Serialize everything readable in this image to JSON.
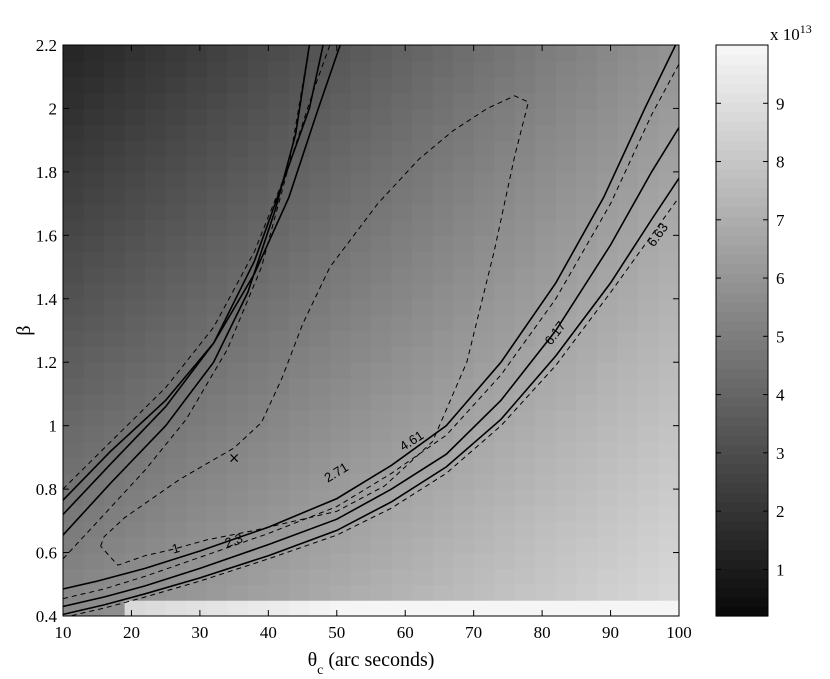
{
  "chart_data": {
    "type": "heatmap",
    "title": "",
    "xlabel": "θ",
    "xlabel_subscript": "c",
    "xlabel_suffix": " (arc seconds)",
    "ylabel": "β",
    "xlim": [
      10,
      100
    ],
    "ylim": [
      0.4,
      2.2
    ],
    "x_ticks": [
      "10",
      "20",
      "30",
      "40",
      "50",
      "60",
      "70",
      "80",
      "90",
      "100"
    ],
    "y_ticks": [
      "0.4",
      "0.6",
      "0.8",
      "1",
      "1.2",
      "1.4",
      "1.6",
      "1.8",
      "2",
      "2.2"
    ],
    "colormap": "gray",
    "colorbar": {
      "min": 0.2,
      "max": 10,
      "ticks": [
        "1",
        "2",
        "3",
        "4",
        "5",
        "6",
        "7",
        "8",
        "9"
      ],
      "multiplier_prefix": "x 10",
      "multiplier_exponent": "13"
    },
    "best_fit_marker": {
      "symbol": "×",
      "x": 35,
      "y": 0.9
    },
    "contours": [
      {
        "level": "1",
        "label": "1",
        "style": "dashed",
        "label_at": [
          26.5,
          0.61
        ],
        "points": [
          [
            15.5,
            0.62
          ],
          [
            16,
            0.65
          ],
          [
            19,
            0.71
          ],
          [
            23,
            0.77
          ],
          [
            27,
            0.83
          ],
          [
            31,
            0.88
          ],
          [
            35,
            0.93
          ],
          [
            39,
            1.01
          ],
          [
            42,
            1.15
          ],
          [
            45,
            1.32
          ],
          [
            49,
            1.5
          ],
          [
            56,
            1.7
          ],
          [
            62,
            1.84
          ],
          [
            67,
            1.93
          ],
          [
            72,
            2.0
          ],
          [
            76,
            2.04
          ],
          [
            78,
            2.02
          ],
          [
            76,
            1.85
          ],
          [
            73,
            1.55
          ],
          [
            69,
            1.2
          ],
          [
            64,
            0.95
          ],
          [
            57,
            0.81
          ],
          [
            50,
            0.73
          ],
          [
            44,
            0.7
          ],
          [
            38,
            0.67
          ],
          [
            31,
            0.64
          ],
          [
            26,
            0.61
          ],
          [
            22,
            0.59
          ],
          [
            18,
            0.56
          ],
          [
            15.5,
            0.62
          ]
        ]
      },
      {
        "level": "2.3",
        "label": "2.3",
        "style": "solid",
        "label_at": [
          35,
          0.635
        ],
        "side": "right",
        "points": [
          [
            10,
            0.485
          ],
          [
            15,
            0.51
          ],
          [
            22,
            0.55
          ],
          [
            30,
            0.605
          ],
          [
            40,
            0.68
          ],
          [
            50,
            0.77
          ],
          [
            58,
            0.875
          ],
          [
            66,
            1.0
          ],
          [
            74,
            1.2
          ],
          [
            82,
            1.45
          ],
          [
            89,
            1.72
          ],
          [
            95,
            2.0
          ],
          [
            99.5,
            2.2
          ]
        ]
      },
      {
        "level": "2.3",
        "label": "",
        "style": "solid",
        "side": "left",
        "points": [
          [
            10,
            0.765
          ],
          [
            17,
            0.92
          ],
          [
            25,
            1.08
          ],
          [
            32,
            1.26
          ],
          [
            38,
            1.48
          ],
          [
            43,
            1.72
          ],
          [
            47,
            1.98
          ],
          [
            50.5,
            2.2
          ]
        ]
      },
      {
        "level": "2.71",
        "label": "2.71",
        "style": "dashed",
        "label_at": [
          50,
          0.85
        ],
        "side": "right",
        "points": [
          [
            10,
            0.455
          ],
          [
            16,
            0.485
          ],
          [
            22,
            0.525
          ],
          [
            30,
            0.585
          ],
          [
            40,
            0.66
          ],
          [
            50,
            0.745
          ],
          [
            58,
            0.85
          ],
          [
            66,
            0.97
          ],
          [
            74,
            1.16
          ],
          [
            82,
            1.4
          ],
          [
            90,
            1.7
          ],
          [
            96,
            1.98
          ],
          [
            100,
            2.14
          ]
        ]
      },
      {
        "level": "2.71",
        "label": "",
        "style": "dashed",
        "side": "left",
        "points": [
          [
            10,
            0.8
          ],
          [
            17,
            0.95
          ],
          [
            25,
            1.12
          ],
          [
            32,
            1.31
          ],
          [
            38,
            1.55
          ],
          [
            43,
            1.82
          ],
          [
            46.5,
            2.05
          ],
          [
            49,
            2.2
          ]
        ]
      },
      {
        "level": "4.61",
        "label": "4.61",
        "style": "solid",
        "label_at": [
          61,
          0.95
        ],
        "side": "right",
        "points": [
          [
            10,
            0.43
          ],
          [
            16,
            0.46
          ],
          [
            22,
            0.495
          ],
          [
            30,
            0.55
          ],
          [
            40,
            0.625
          ],
          [
            50,
            0.705
          ],
          [
            58,
            0.8
          ],
          [
            66,
            0.91
          ],
          [
            74,
            1.08
          ],
          [
            82,
            1.3
          ],
          [
            90,
            1.57
          ],
          [
            96,
            1.8
          ],
          [
            100,
            1.94
          ]
        ]
      },
      {
        "level": "4.61",
        "label": "",
        "style": "solid",
        "side": "left",
        "points": [
          [
            10,
            0.72
          ],
          [
            17,
            0.88
          ],
          [
            25,
            1.06
          ],
          [
            32,
            1.26
          ],
          [
            38,
            1.52
          ],
          [
            43,
            1.82
          ],
          [
            46,
            2.0
          ],
          [
            48,
            2.2
          ]
        ]
      },
      {
        "level": "6.17",
        "label": "6.17",
        "style": "solid",
        "label_at": [
          82,
          1.29
        ],
        "side": "right",
        "points": [
          [
            10,
            0.405
          ],
          [
            16,
            0.435
          ],
          [
            22,
            0.47
          ],
          [
            30,
            0.52
          ],
          [
            40,
            0.59
          ],
          [
            50,
            0.67
          ],
          [
            58,
            0.76
          ],
          [
            66,
            0.87
          ],
          [
            74,
            1.02
          ],
          [
            82,
            1.22
          ],
          [
            90,
            1.45
          ],
          [
            96,
            1.65
          ],
          [
            100,
            1.78
          ]
        ]
      },
      {
        "level": "6.17",
        "label": "",
        "style": "solid",
        "side": "left",
        "points": [
          [
            10,
            0.655
          ],
          [
            17,
            0.82
          ],
          [
            25,
            1.0
          ],
          [
            32,
            1.2
          ],
          [
            37,
            1.42
          ],
          [
            41,
            1.68
          ],
          [
            44,
            1.92
          ],
          [
            46,
            2.2
          ]
        ]
      },
      {
        "level": "6.63",
        "label": "6.63",
        "style": "dashed",
        "label_at": [
          97,
          1.6
        ],
        "side": "right",
        "points": [
          [
            10,
            0.395
          ],
          [
            16,
            0.425
          ],
          [
            22,
            0.46
          ],
          [
            30,
            0.51
          ],
          [
            40,
            0.58
          ],
          [
            50,
            0.655
          ],
          [
            58,
            0.74
          ],
          [
            66,
            0.85
          ],
          [
            74,
            1.0
          ],
          [
            82,
            1.19
          ],
          [
            90,
            1.42
          ],
          [
            96,
            1.6
          ],
          [
            100,
            1.72
          ]
        ]
      },
      {
        "level": "6.63",
        "label": "",
        "style": "dashed",
        "side": "left",
        "points": [
          [
            10,
            0.58
          ],
          [
            16,
            0.72
          ],
          [
            22,
            0.86
          ],
          [
            28,
            1.02
          ],
          [
            34,
            1.24
          ],
          [
            39,
            1.5
          ],
          [
            43,
            1.82
          ],
          [
            46,
            2.2
          ]
        ]
      }
    ]
  }
}
